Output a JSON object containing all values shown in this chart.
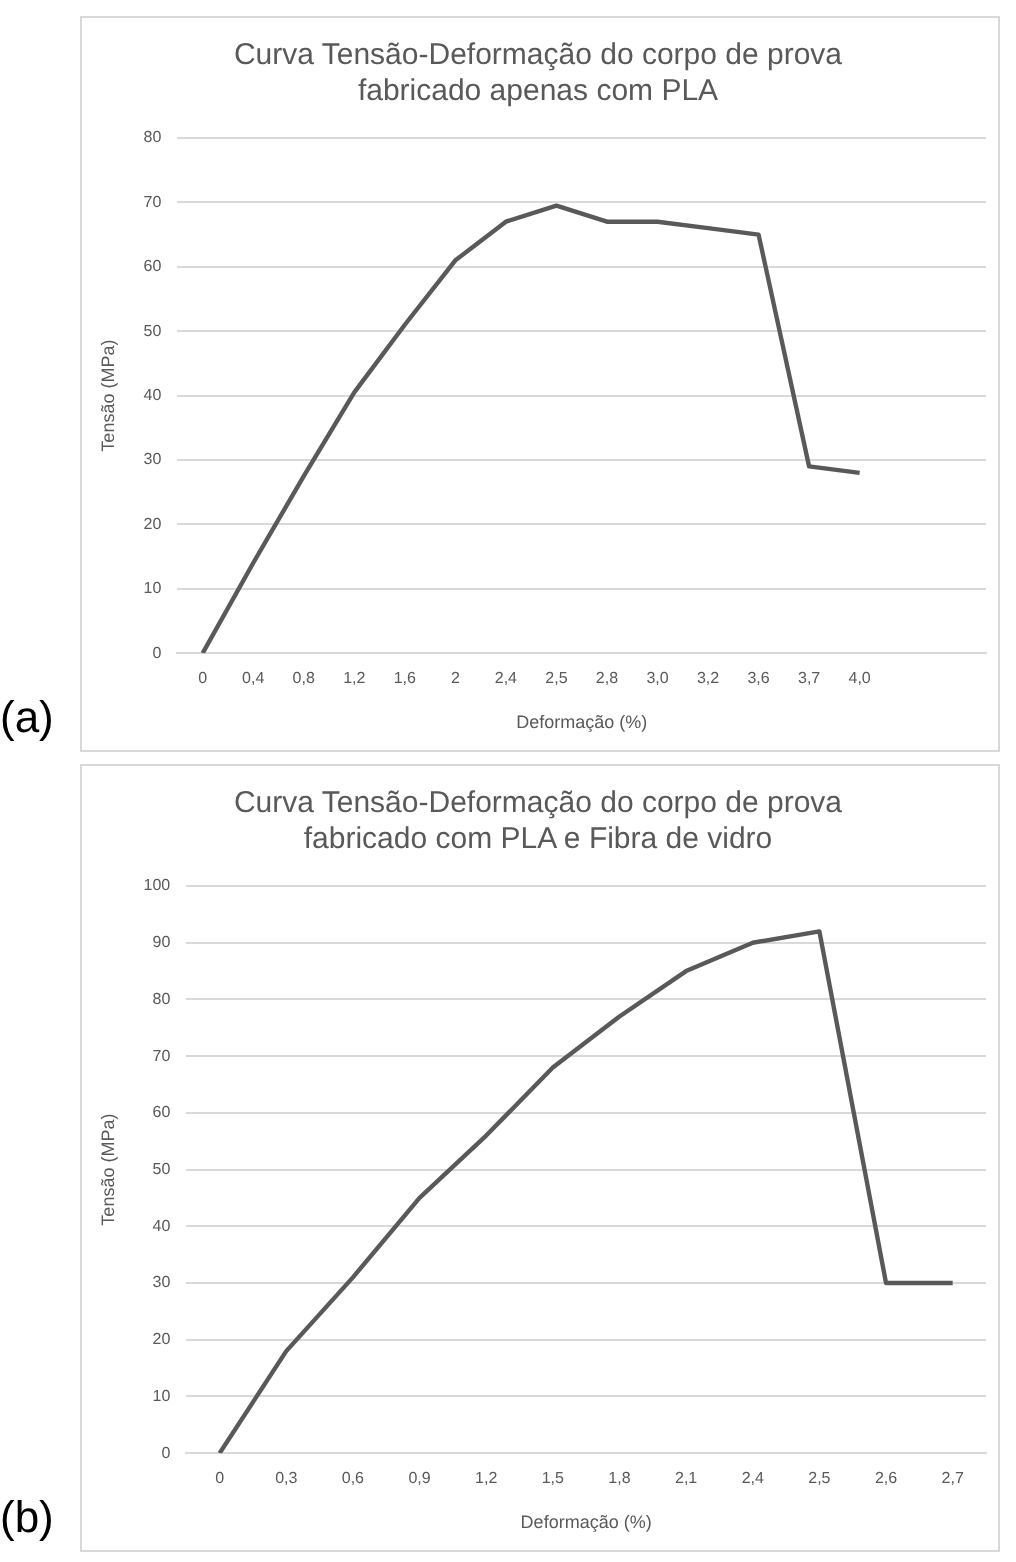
{
  "chart_data": [
    {
      "type": "line",
      "title": "Curva Tensão-Deformação do corpo de prova fabricado apenas com PLA",
      "xlabel": "Deformação (%)",
      "ylabel": "Tensão (MPa)",
      "annotations": [
        "(a)"
      ],
      "categories": [
        "0",
        "0,4",
        "0,8",
        "1,2",
        "1,6",
        "2",
        "2,4",
        "2,5",
        "2,8",
        "3,0",
        "3,2",
        "3,6",
        "3,7",
        "4,0",
        null,
        null
      ],
      "series": [
        {
          "color": "#595959",
          "values": [
            0,
            14,
            27.5,
            40.5,
            51,
            61,
            67,
            69.5,
            67,
            67,
            66,
            65,
            29,
            28,
            null,
            null
          ]
        }
      ],
      "ylim": [
        0,
        80
      ],
      "yticks": [
        0,
        10,
        20,
        30,
        40,
        50,
        60,
        70,
        80
      ],
      "grid": "y"
    },
    {
      "type": "line",
      "title": "Curva Tensão-Deformação do corpo de prova fabricado com PLA e Fibra de vidro",
      "xlabel": "Deformação (%)",
      "ylabel": "Tensão (MPa)",
      "annotations": [
        "(b)"
      ],
      "categories": [
        "0",
        "0,3",
        "0,6",
        "0,9",
        "1,2",
        "1,5",
        "1,8",
        "2,1",
        "2,4",
        "2,5",
        "2,6",
        "2,7"
      ],
      "series": [
        {
          "color": "#595959",
          "values": [
            0,
            18,
            31,
            45,
            56,
            68,
            77,
            85,
            90,
            92,
            30,
            30
          ]
        }
      ],
      "ylim": [
        0,
        100
      ],
      "yticks": [
        0,
        10,
        20,
        30,
        40,
        50,
        60,
        70,
        80,
        90,
        100
      ],
      "grid": "y"
    }
  ]
}
